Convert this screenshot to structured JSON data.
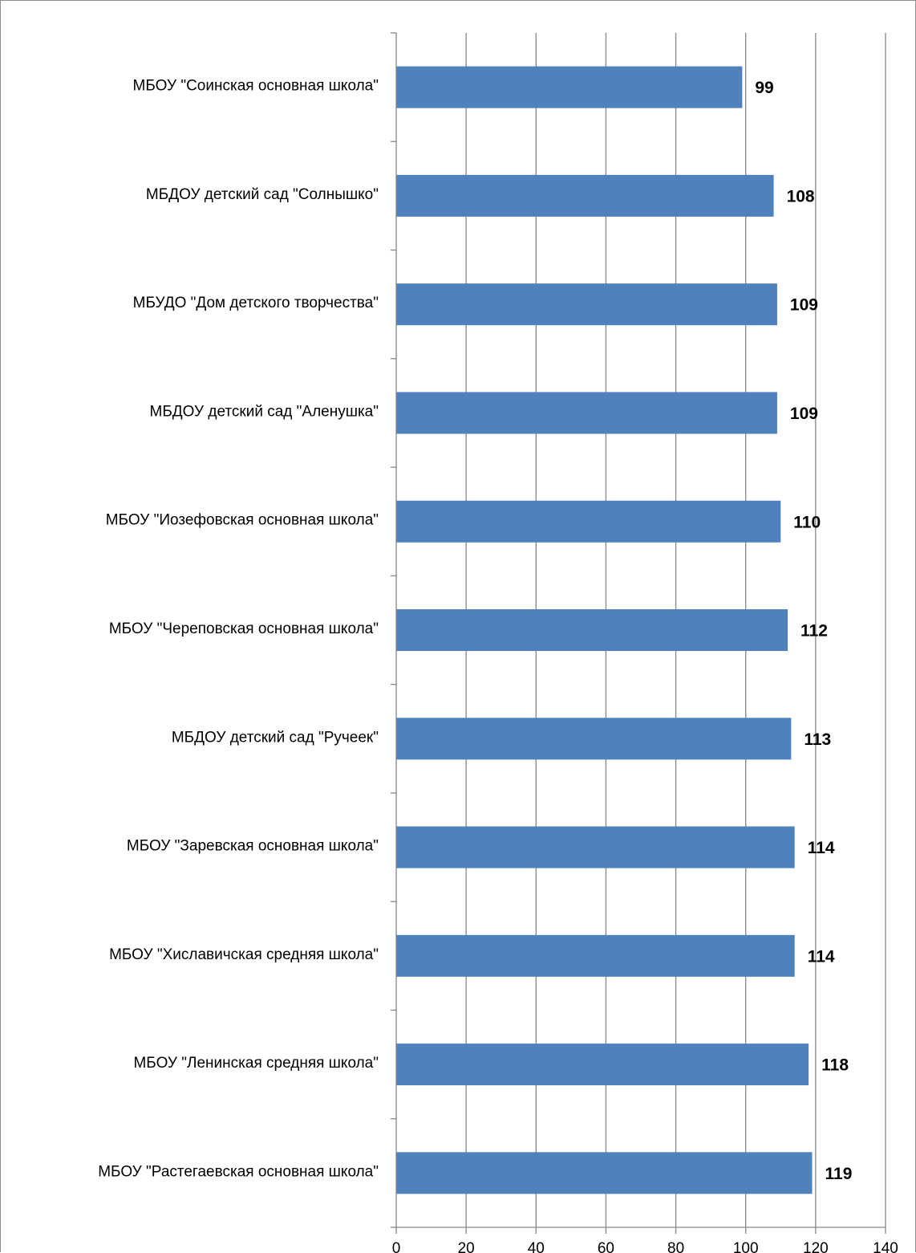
{
  "chart_data": {
    "type": "bar",
    "orientation": "horizontal",
    "categories": [
      "МБОУ \"Соинская основная школа\"",
      "МБДОУ детский сад \"Солнышко\"",
      "МБУДО \"Дом детского творчества\"",
      "МБДОУ детский сад \"Аленушка\"",
      "МБОУ \"Иозефовская основная школа\"",
      "МБОУ \"Череповская основная школа\"",
      "МБДОУ детский сад \"Ручеек\"",
      "МБОУ \"Заревская основная школа\"",
      "МБОУ \"Хиславичская средняя школа\"",
      "МБОУ \"Ленинская средняя школа\"",
      "МБОУ \"Растегаевская основная школа\""
    ],
    "values": [
      99,
      108,
      109,
      109,
      110,
      112,
      113,
      114,
      114,
      118,
      119
    ],
    "data_labels": [
      "99",
      "108",
      "109",
      "109",
      "110",
      "112",
      "113",
      "114",
      "114",
      "118",
      "119"
    ],
    "x_ticks": [
      "0",
      "20",
      "40",
      "60",
      "80",
      "100",
      "120",
      "140"
    ],
    "xlim": [
      0,
      140
    ],
    "grid": "vertical",
    "legend": "none",
    "title": "",
    "xlabel": "",
    "ylabel": "",
    "colors": {
      "bar": "#4F81BD",
      "grid": "#868686",
      "axis": "#868686",
      "border": "#8c8c8c"
    }
  }
}
